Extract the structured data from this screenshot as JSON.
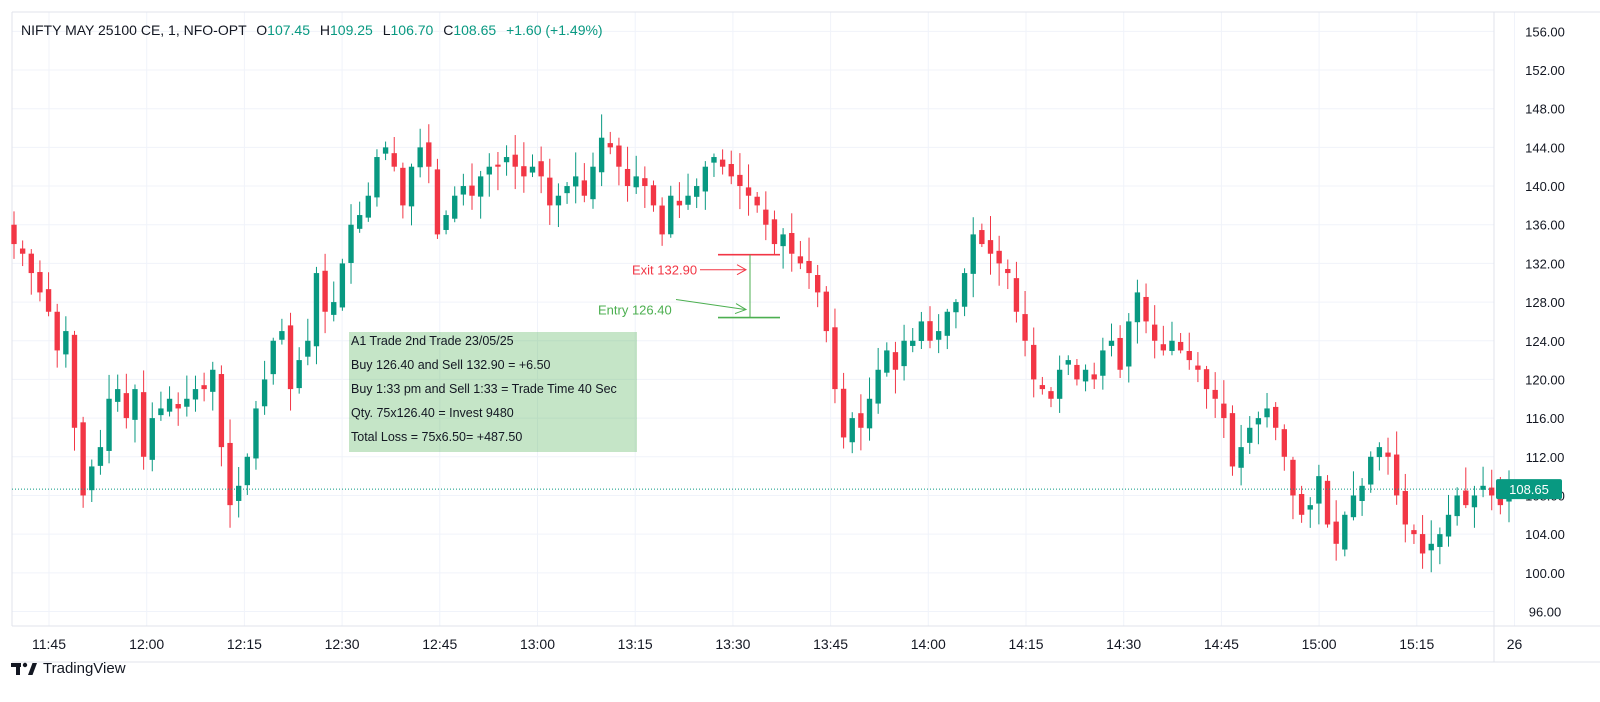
{
  "legend": {
    "symbol": "NIFTY MAY 25100 CE, 1, NFO-OPT",
    "o_label": "O",
    "o_value": "107.45",
    "h_label": "H",
    "h_value": "109.25",
    "l_label": "L",
    "l_value": "106.70",
    "c_label": "C",
    "c_value": "108.65",
    "change": "+1.60 (+1.49%)"
  },
  "last_price_tag": "108.65",
  "footer_brand": "TradingView",
  "annotations": {
    "exit_label": "Exit 132.90",
    "entry_label": "Entry 126.40",
    "notes": [
      "A1 Trade  2nd Trade 23/05/25",
      "Buy 126.40 and Sell 132.90 =  +6.50",
      "Buy 1:33 pm and Sell 1:33 = Trade Time 40 Sec",
      "Qty. 75x126.40 = Invest 9480",
      "Total Loss = 75x6.50= +487.50"
    ]
  },
  "colors": {
    "up": "#089981",
    "down": "#f23645",
    "entry": "#4caf50",
    "grid": "#f0f3fa",
    "axis_text": "#131722"
  },
  "chart_data": {
    "type": "candlestick",
    "ylim": [
      94.5,
      158
    ],
    "y_ticks": [
      "156.00",
      "152.00",
      "148.00",
      "144.00",
      "140.00",
      "136.00",
      "132.00",
      "128.00",
      "124.00",
      "120.00",
      "116.00",
      "112.00",
      "108.00",
      "104.00",
      "100.00",
      "96.00"
    ],
    "x_ticks": [
      "11:45",
      "12:00",
      "12:15",
      "12:30",
      "12:45",
      "13:00",
      "13:15",
      "13:30",
      "13:45",
      "14:00",
      "14:15",
      "14:30",
      "14:45",
      "15:00",
      "15:15",
      "26"
    ],
    "exit_price": 132.9,
    "entry_price": 126.4,
    "last_price": 108.65,
    "closes": [
      134,
      133,
      131,
      129,
      127,
      123,
      125,
      115,
      108,
      111,
      113,
      118,
      119,
      116,
      119,
      112,
      116,
      117,
      118,
      117,
      118,
      119,
      119,
      121,
      113,
      107,
      109,
      112,
      117,
      120,
      124,
      125,
      119,
      122,
      124,
      131,
      127,
      128,
      132,
      136,
      137,
      139,
      143,
      144,
      142,
      138,
      142,
      144,
      142,
      135,
      137,
      139,
      140,
      139,
      141,
      142,
      142,
      143,
      142,
      141,
      142,
      141,
      138,
      139,
      140,
      141,
      139,
      142,
      145,
      144,
      142,
      140,
      141,
      140,
      138,
      135,
      139,
      138,
      139,
      140,
      142,
      143,
      142,
      141,
      140,
      139,
      138,
      136,
      134,
      135,
      133,
      132,
      131,
      129,
      125,
      119,
      114,
      116,
      115,
      118,
      121,
      123,
      121,
      124,
      124,
      126,
      124,
      125,
      127,
      128,
      131,
      135,
      134,
      133,
      132,
      131,
      127,
      124,
      120,
      119,
      118,
      121,
      122,
      120,
      121,
      120,
      123,
      124,
      121,
      126,
      129,
      126,
      124,
      123,
      124,
      123,
      122,
      121,
      119,
      118,
      116,
      111,
      113,
      115,
      116,
      117,
      115,
      112,
      108,
      106,
      107,
      110,
      105,
      103,
      106,
      108,
      109,
      112,
      113,
      112,
      108,
      105,
      104,
      102,
      103,
      104,
      106,
      108,
      107,
      108,
      109,
      108,
      107,
      108.65
    ]
  }
}
